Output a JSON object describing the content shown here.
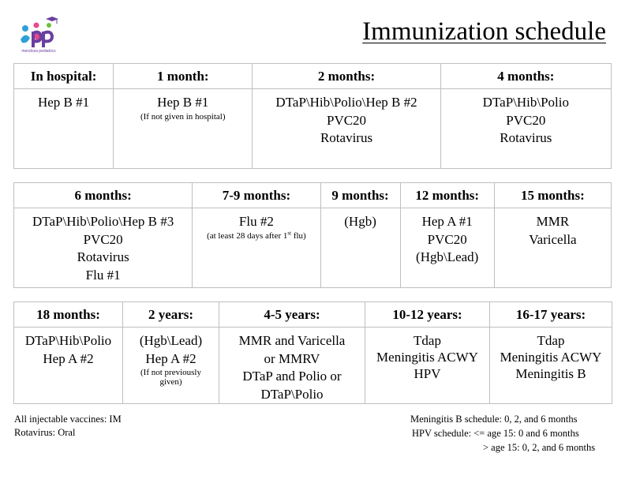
{
  "header": {
    "logo_text": "mendoza pediatrics",
    "title": "Immunization schedule"
  },
  "table1": {
    "headers": [
      "In hospital:",
      "1 month:",
      "2 months:",
      "4 months:"
    ],
    "cells": [
      {
        "lines": [
          "Hep B #1"
        ]
      },
      {
        "lines": [
          "Hep B #1"
        ],
        "note": "(If not given in hospital)"
      },
      {
        "lines": [
          "DTaP\\Hib\\Polio\\Hep B #2",
          "PVC20",
          "Rotavirus"
        ]
      },
      {
        "lines": [
          "DTaP\\Hib\\Polio",
          "PVC20",
          "Rotavirus"
        ]
      }
    ]
  },
  "table2": {
    "headers": [
      "6 months:",
      "7-9 months:",
      "9 months:",
      "12 months:",
      "15 months:"
    ],
    "cells": [
      {
        "lines": [
          "DTaP\\Hib\\Polio\\Hep B #3",
          "PVC20",
          "Rotavirus",
          "Flu #1"
        ]
      },
      {
        "lines": [
          "Flu #2"
        ],
        "note_pre": "(at least 28 days after 1",
        "note_sup": "st",
        "note_post": " flu)"
      },
      {
        "lines": [
          "(Hgb)"
        ]
      },
      {
        "lines": [
          "Hep A #1",
          "PVC20",
          "(Hgb\\Lead)"
        ]
      },
      {
        "lines": [
          "MMR",
          "Varicella"
        ]
      }
    ]
  },
  "table3": {
    "headers": [
      "18 months:",
      "2 years:",
      "4-5 years:",
      "10-12 years:",
      "16-17 years:"
    ],
    "cells": [
      {
        "lines": [
          "DTaP\\Hib\\Polio",
          "Hep A #2"
        ]
      },
      {
        "lines": [
          "(Hgb\\Lead)",
          "Hep A #2"
        ],
        "note_lines": [
          "(If not previously",
          "given)"
        ]
      },
      {
        "lines": [
          "MMR and Varicella",
          "or MMRV",
          "DTaP and Polio or",
          "DTaP\\Polio"
        ]
      },
      {
        "lines": [
          "Tdap",
          "Meningitis ACWY",
          "HPV"
        ]
      },
      {
        "lines": [
          "Tdap",
          "Meningitis ACWY",
          "Meningitis B"
        ]
      }
    ]
  },
  "footer": {
    "left": [
      "All injectable vaccines: IM",
      "Rotavirus: Oral"
    ],
    "right": [
      "Meningitis B schedule: 0, 2, and 6 months",
      "HPV schedule: <= age 15: 0 and 6 months",
      "> age 15: 0, 2, and 6 months"
    ]
  },
  "colors": {
    "logo_purple": "#6b3fa0",
    "logo_blue": "#2f9fd8",
    "logo_pink": "#e84a8a",
    "logo_green": "#6cbf3c",
    "border": "#bfbfbf"
  }
}
